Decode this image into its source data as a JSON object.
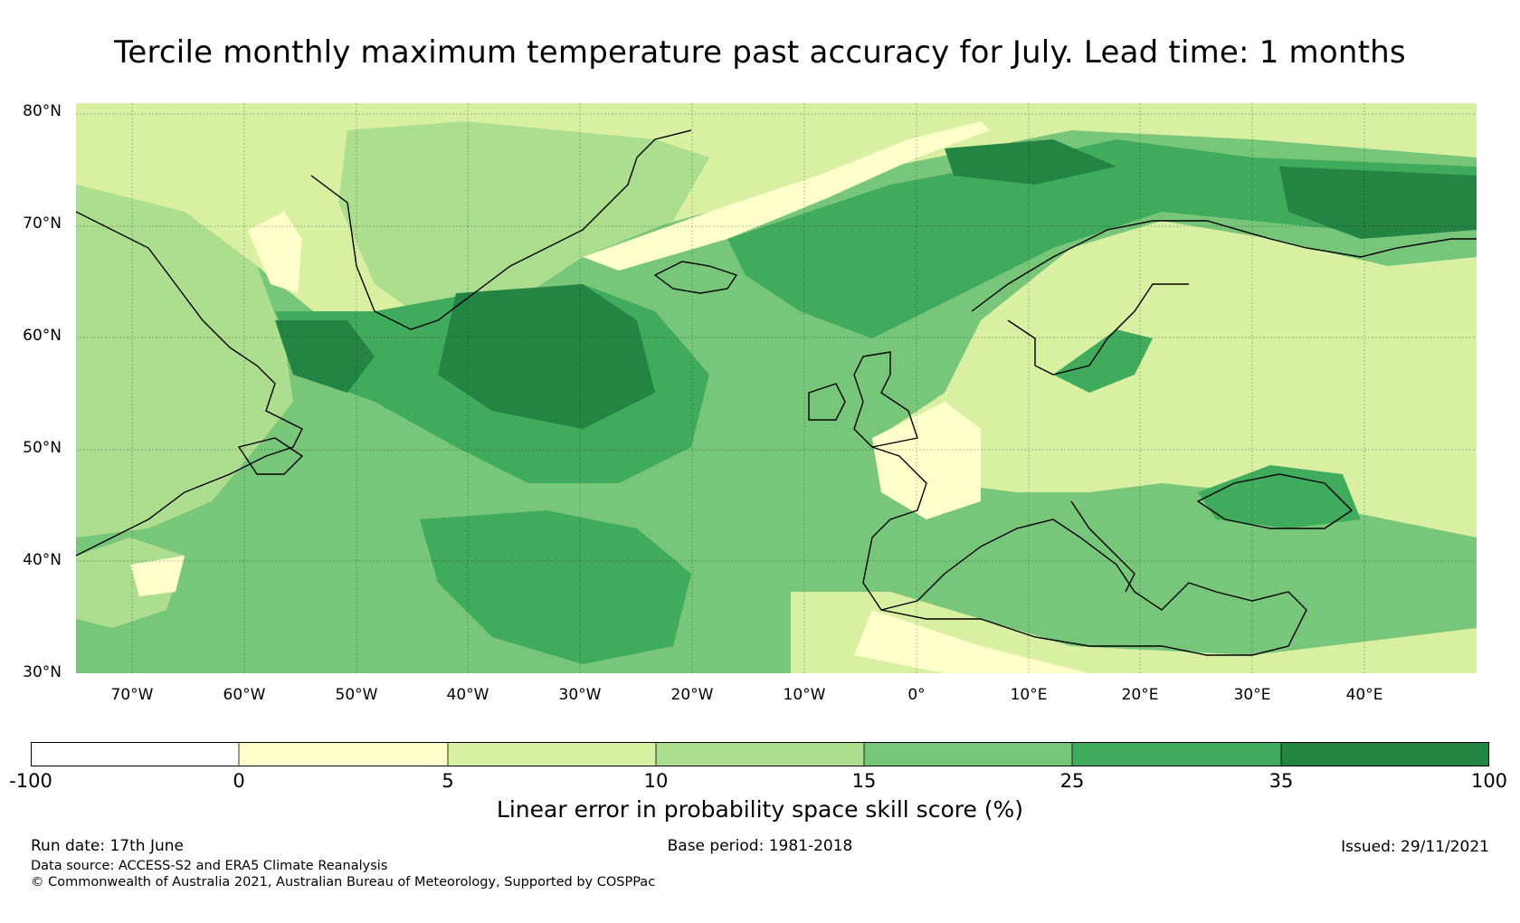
{
  "title": "Tercile monthly maximum temperature past accuracy for July. Lead time: 1 months",
  "map": {
    "lat_ticks": [
      "80°N",
      "70°N",
      "60°N",
      "50°N",
      "40°N",
      "30°N"
    ],
    "lat_values": [
      80,
      70,
      60,
      50,
      40,
      30
    ],
    "lon_ticks": [
      "70°W",
      "60°W",
      "50°W",
      "40°W",
      "30°W",
      "20°W",
      "10°W",
      "0°",
      "10°E",
      "20°E",
      "30°E",
      "40°E"
    ],
    "lon_values": [
      -70,
      -60,
      -50,
      -40,
      -30,
      -20,
      -10,
      0,
      10,
      20,
      30,
      40
    ],
    "extent": {
      "lon_min": -75,
      "lon_max": 50,
      "lat_min": 30,
      "lat_max": 81
    }
  },
  "colorbar": {
    "label": "Linear error in probability space skill score (%)",
    "ticks": [
      "-100",
      "0",
      "5",
      "10",
      "15",
      "25",
      "35",
      "100"
    ],
    "colors": [
      "#ffffff",
      "#ffffcc",
      "#d9f0a3",
      "#addd8e",
      "#78c679",
      "#41ab5d",
      "#238443"
    ]
  },
  "footer": {
    "run_date": "Run date: 17th June",
    "base_period": "Base period: 1981-2018",
    "issued": "Issued: 29/11/2021",
    "data_source": "Data source: ACCESS-S2 and ERA5 Climate Reanalysis",
    "copyright": "© Commonwealth of Australia 2021, Australian Bureau of Meteorology, Supported by COSPPac"
  }
}
